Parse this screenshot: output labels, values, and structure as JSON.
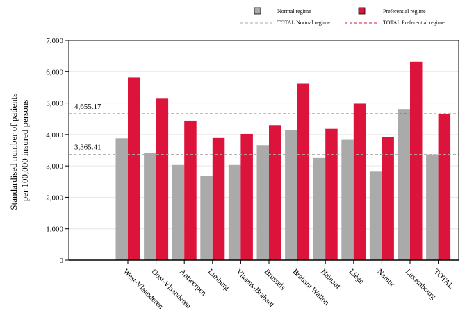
{
  "chart_data": {
    "type": "bar",
    "ylabel_lines": [
      "Standardised number of patients",
      "per 100,000 insured persons"
    ],
    "categories": [
      "West-Vlaanderen",
      "Oost-Vlaanderen",
      "Antwerpen",
      "Limburg",
      "Vlaams-Brabant",
      "Brussels",
      "Brabant Wallon",
      "Hainaut",
      "Liège",
      "Namur",
      "Luxembourg",
      "TOTAL"
    ],
    "series": [
      {
        "name": "Normal regime",
        "color": "#aaaaaa",
        "values": [
          3880,
          3420,
          3030,
          2680,
          3030,
          3660,
          4150,
          3250,
          3830,
          2820,
          4810,
          3365.41
        ]
      },
      {
        "name": "Preferential regime",
        "color": "#dc143c",
        "values": [
          5820,
          5160,
          4440,
          3890,
          4020,
          4300,
          5620,
          4180,
          4980,
          3930,
          6320,
          4655.17
        ]
      }
    ],
    "reference_lines": [
      {
        "name": "TOTAL Normal regime",
        "value": 3365.41,
        "label": "3,365.41",
        "color": "#aaaaaa"
      },
      {
        "name": "TOTAL Preferential regime",
        "value": 4655.17,
        "label": "4,655.17",
        "color": "#dc143c"
      }
    ],
    "yticks": [
      "0",
      "1,000",
      "2,000",
      "3,000",
      "4,000",
      "5,000",
      "6,000",
      "7,000"
    ],
    "ytick_values": [
      0,
      1000,
      2000,
      3000,
      4000,
      5000,
      6000,
      7000
    ],
    "ylim": [
      0,
      7000
    ],
    "grid": true,
    "legend_position": "top-right"
  }
}
